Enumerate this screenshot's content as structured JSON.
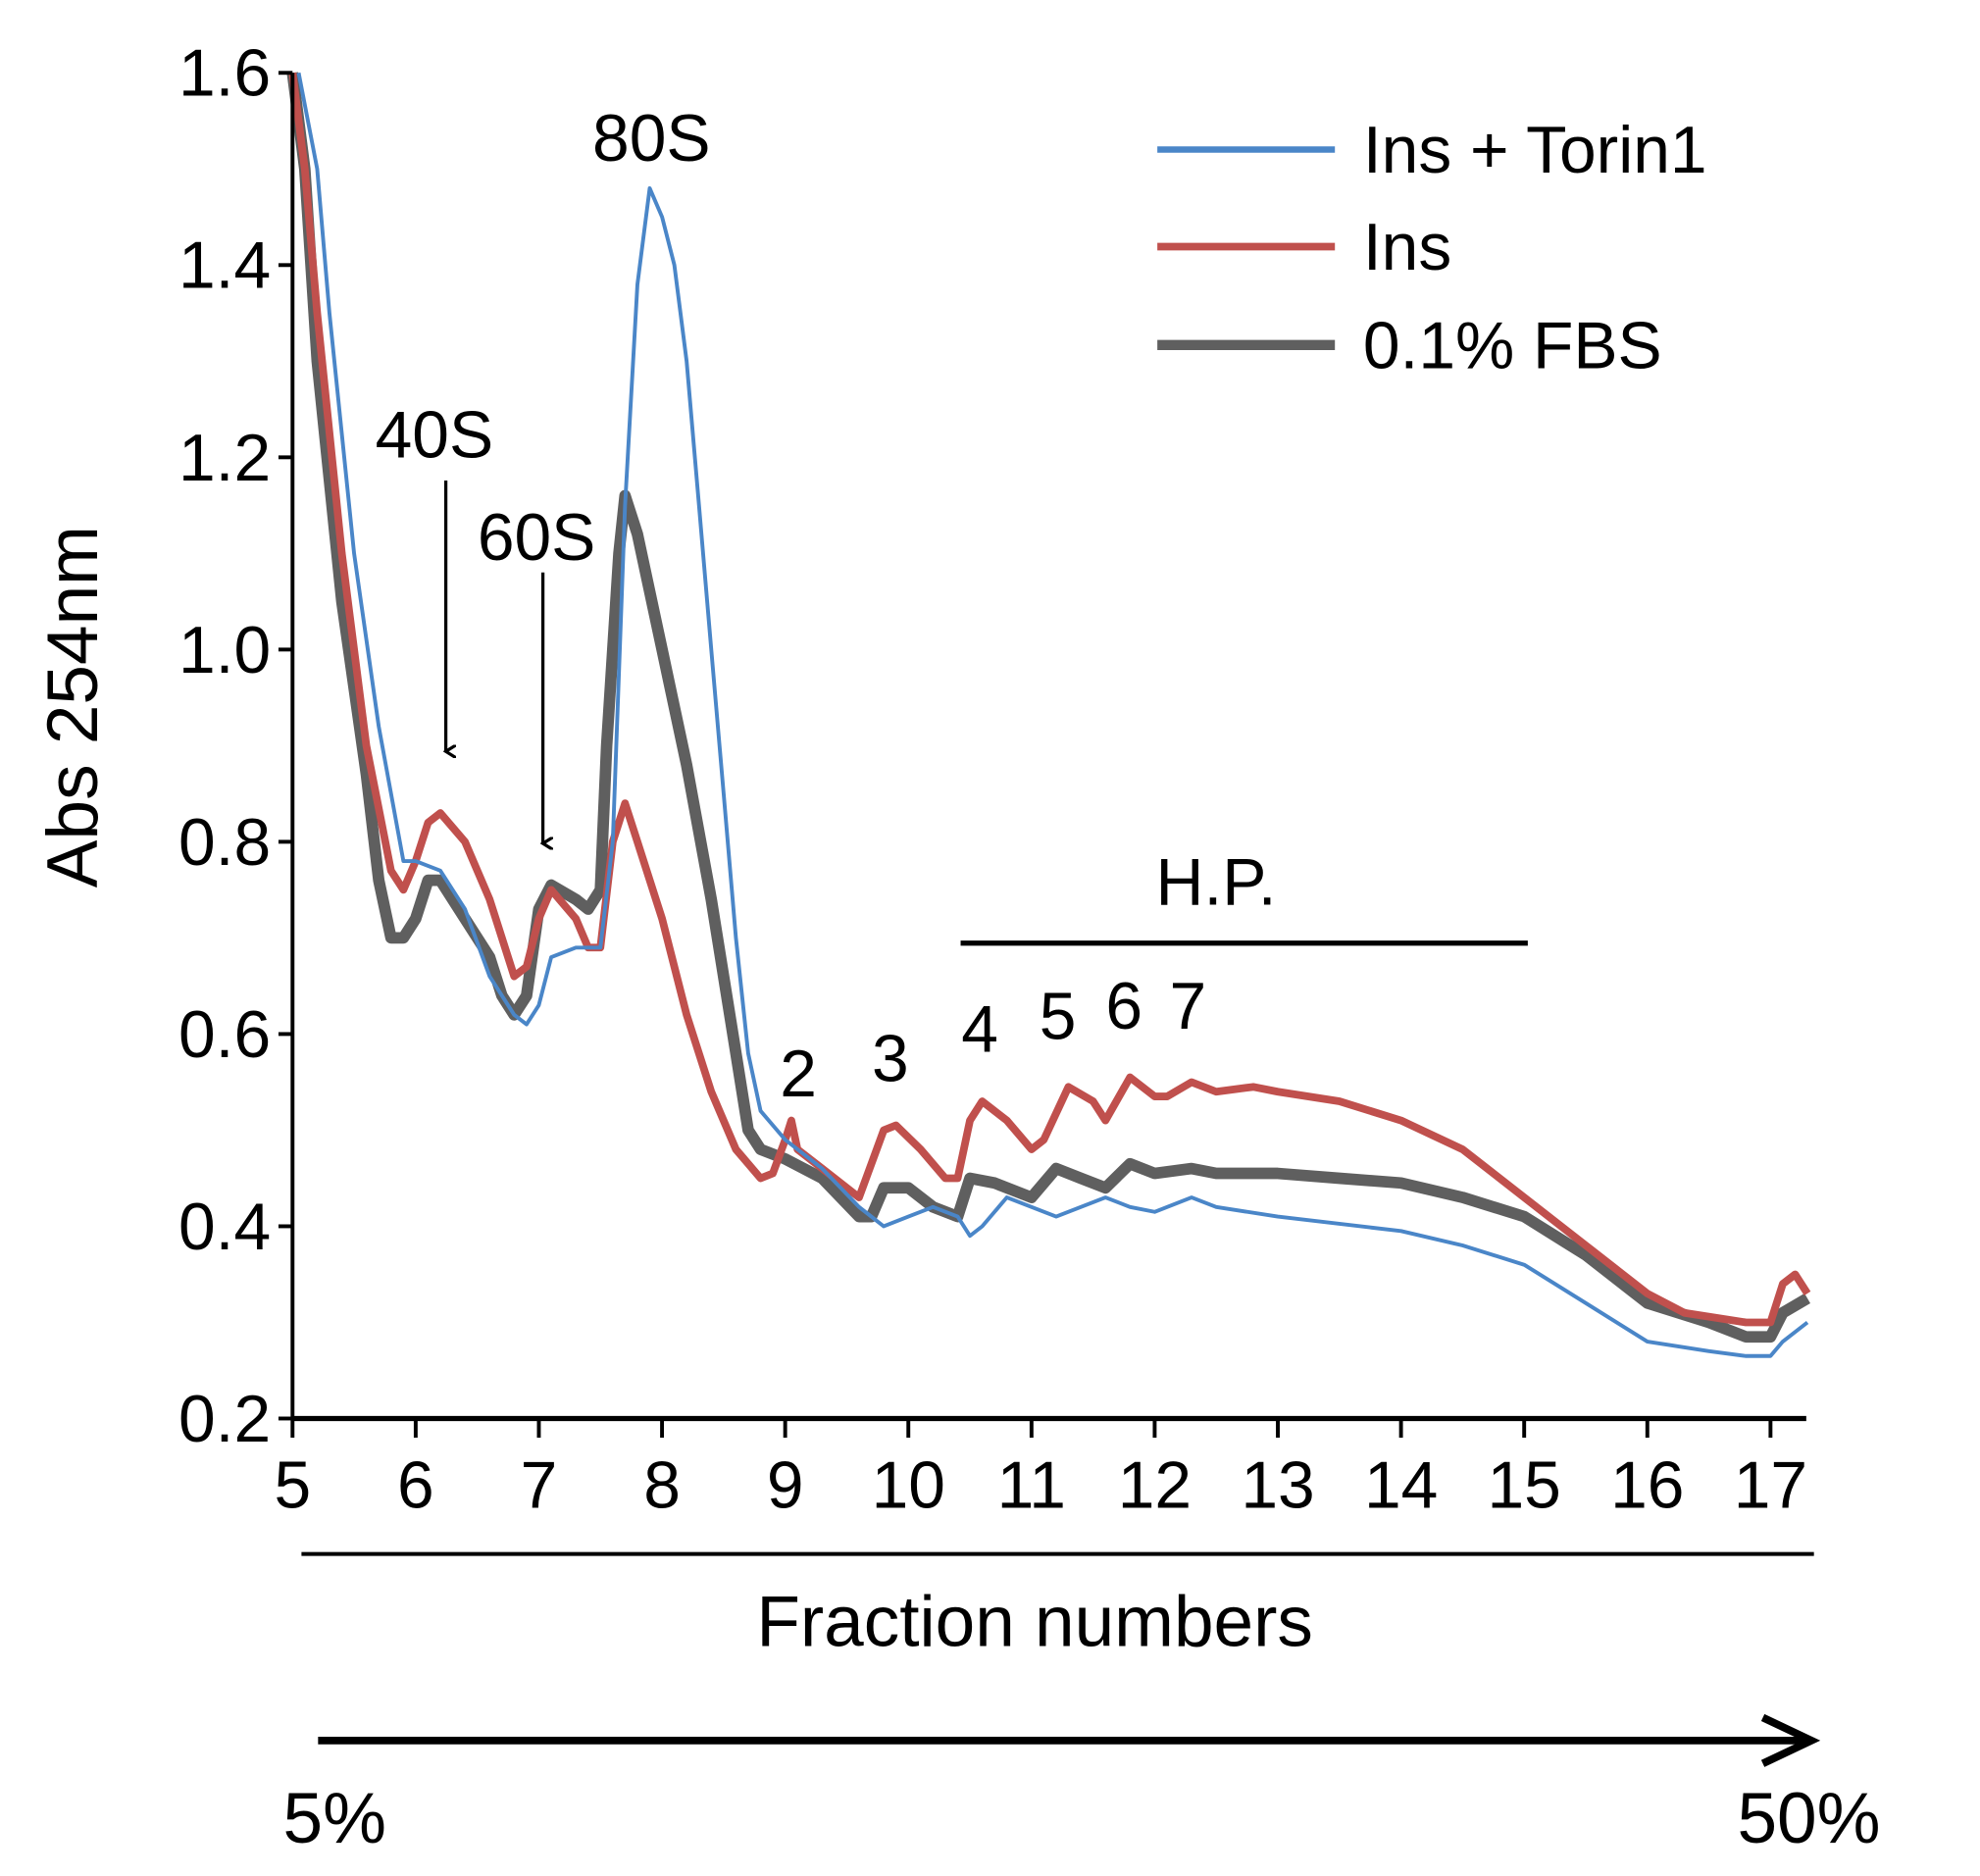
{
  "chart_data": {
    "type": "line",
    "xlabel": "Fraction numbers",
    "ylabel": "Abs 254nm",
    "xlim": [
      5,
      17.3
    ],
    "ylim": [
      0.2,
      1.6
    ],
    "x_ticks": [
      "5",
      "6",
      "7",
      "8",
      "9",
      "10",
      "11",
      "12",
      "13",
      "14",
      "15",
      "16",
      "17"
    ],
    "y_ticks": [
      "0.2",
      "0.4",
      "0.6",
      "0.8",
      "1.0",
      "1.2",
      "1.4",
      "1.6"
    ],
    "legend_position": "top-right",
    "grid": false,
    "gradient": {
      "start": "5%",
      "end": "50%"
    },
    "annotations": {
      "s80": "80S",
      "s40": "40S",
      "s60": "60S",
      "hp": "H.P.",
      "polysomes": [
        "2",
        "3",
        "4",
        "5",
        "6",
        "7"
      ]
    },
    "series": [
      {
        "name": "Ins + Torin1",
        "color": "#4a86c8",
        "x": [
          5.05,
          5.2,
          5.3,
          5.5,
          5.7,
          5.9,
          6.0,
          6.2,
          6.4,
          6.6,
          6.8,
          6.9,
          7.0,
          7.1,
          7.3,
          7.5,
          7.6,
          7.7,
          7.8,
          7.9,
          8.0,
          8.1,
          8.2,
          8.3,
          8.4,
          8.5,
          8.6,
          8.7,
          8.8,
          9.0,
          9.3,
          9.6,
          9.8,
          10.0,
          10.2,
          10.4,
          10.5,
          10.6,
          10.8,
          11.0,
          11.2,
          11.4,
          11.6,
          11.8,
          12.0,
          12.3,
          12.5,
          13.0,
          14.0,
          14.5,
          15.0,
          15.5,
          16.0,
          16.5,
          16.8,
          17.0,
          17.1,
          17.3
        ],
        "y": [
          1.6,
          1.5,
          1.35,
          1.1,
          0.92,
          0.78,
          0.78,
          0.77,
          0.73,
          0.66,
          0.62,
          0.61,
          0.63,
          0.68,
          0.69,
          0.69,
          0.8,
          1.15,
          1.38,
          1.48,
          1.45,
          1.4,
          1.3,
          1.15,
          1.0,
          0.85,
          0.7,
          0.58,
          0.52,
          0.49,
          0.46,
          0.42,
          0.4,
          0.41,
          0.42,
          0.41,
          0.39,
          0.4,
          0.43,
          0.42,
          0.41,
          0.42,
          0.43,
          0.42,
          0.415,
          0.43,
          0.42,
          0.41,
          0.395,
          0.38,
          0.36,
          0.32,
          0.28,
          0.27,
          0.265,
          0.265,
          0.28,
          0.3
        ]
      },
      {
        "name": "Ins",
        "color": "#c0504d",
        "x": [
          5.0,
          5.1,
          5.2,
          5.4,
          5.6,
          5.8,
          5.9,
          6.0,
          6.1,
          6.2,
          6.4,
          6.6,
          6.8,
          6.9,
          7.0,
          7.1,
          7.3,
          7.4,
          7.5,
          7.6,
          7.7,
          7.8,
          8.0,
          8.2,
          8.4,
          8.6,
          8.8,
          8.9,
          9.0,
          9.05,
          9.1,
          9.3,
          9.6,
          9.8,
          9.9,
          10.1,
          10.3,
          10.4,
          10.5,
          10.6,
          10.8,
          11.0,
          11.1,
          11.3,
          11.5,
          11.6,
          11.8,
          12.0,
          12.1,
          12.3,
          12.5,
          12.8,
          13.0,
          13.5,
          14.0,
          14.5,
          15.0,
          15.5,
          16.0,
          16.3,
          16.8,
          17.0,
          17.1,
          17.2,
          17.3
        ],
        "y": [
          1.6,
          1.5,
          1.35,
          1.1,
          0.9,
          0.77,
          0.75,
          0.78,
          0.82,
          0.83,
          0.8,
          0.74,
          0.66,
          0.67,
          0.72,
          0.75,
          0.72,
          0.69,
          0.69,
          0.8,
          0.84,
          0.8,
          0.72,
          0.62,
          0.54,
          0.48,
          0.45,
          0.455,
          0.49,
          0.51,
          0.48,
          0.46,
          0.43,
          0.5,
          0.505,
          0.48,
          0.45,
          0.45,
          0.51,
          0.53,
          0.51,
          0.48,
          0.49,
          0.545,
          0.53,
          0.51,
          0.555,
          0.535,
          0.535,
          0.55,
          0.54,
          0.545,
          0.54,
          0.53,
          0.51,
          0.48,
          0.43,
          0.38,
          0.33,
          0.31,
          0.3,
          0.3,
          0.34,
          0.35,
          0.33
        ]
      },
      {
        "name": "0.1% FBS",
        "color": "#5f5f5f",
        "x": [
          5.0,
          5.1,
          5.2,
          5.4,
          5.6,
          5.7,
          5.8,
          5.9,
          6.0,
          6.1,
          6.2,
          6.4,
          6.6,
          6.7,
          6.8,
          6.9,
          7.0,
          7.1,
          7.3,
          7.4,
          7.5,
          7.55,
          7.65,
          7.7,
          7.8,
          8.0,
          8.2,
          8.4,
          8.6,
          8.7,
          8.8,
          9.0,
          9.3,
          9.6,
          9.7,
          9.8,
          10.0,
          10.2,
          10.4,
          10.5,
          10.7,
          11.0,
          11.2,
          11.4,
          11.6,
          11.8,
          12.0,
          12.3,
          12.5,
          13.0,
          13.5,
          14.0,
          14.5,
          15.0,
          15.5,
          16.0,
          16.5,
          16.8,
          17.0,
          17.1,
          17.3
        ],
        "y": [
          1.6,
          1.5,
          1.3,
          1.05,
          0.87,
          0.76,
          0.7,
          0.7,
          0.72,
          0.76,
          0.76,
          0.72,
          0.68,
          0.64,
          0.62,
          0.64,
          0.73,
          0.755,
          0.74,
          0.73,
          0.75,
          0.9,
          1.1,
          1.16,
          1.12,
          1.0,
          0.88,
          0.74,
          0.58,
          0.5,
          0.48,
          0.47,
          0.45,
          0.41,
          0.41,
          0.44,
          0.44,
          0.42,
          0.41,
          0.45,
          0.445,
          0.43,
          0.46,
          0.45,
          0.44,
          0.465,
          0.455,
          0.46,
          0.455,
          0.455,
          0.45,
          0.445,
          0.43,
          0.41,
          0.37,
          0.32,
          0.3,
          0.285,
          0.285,
          0.31,
          0.325
        ]
      }
    ]
  }
}
